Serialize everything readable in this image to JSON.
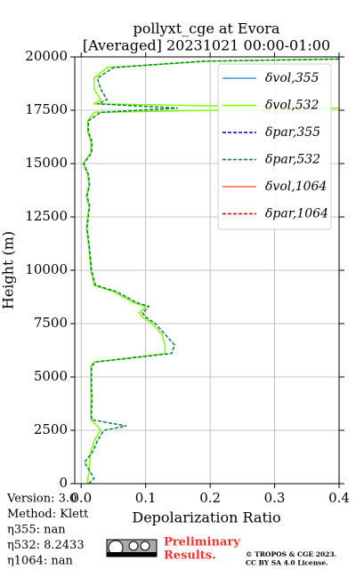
{
  "chart_data": {
    "type": "line",
    "title": "pollyxt_cge at Evora",
    "subtitle": "[Averaged] 20231021 00:00-01:00",
    "x_label": "Depolarization Ratio",
    "y_label": "Height (m)",
    "heights": [
      0,
      250,
      500,
      1000,
      1500,
      2000,
      2500,
      2700,
      3000,
      3500,
      4000,
      4500,
      5000,
      5500,
      5700,
      5900,
      6100,
      6500,
      7000,
      7500,
      7800,
      8000,
      8300,
      8500,
      9000,
      9300,
      10000,
      11000,
      12000,
      12500,
      13000,
      13500,
      14000,
      14500,
      15000,
      15500,
      16000,
      16500,
      17000,
      17400,
      17600,
      17800,
      18000,
      18500,
      19000,
      19500,
      19800,
      19900,
      20000
    ],
    "series": [
      {
        "name": "δvol,355",
        "color": "#3399dd",
        "dash": false,
        "values": [
          null,
          null,
          null,
          null,
          null,
          null,
          null,
          null,
          null,
          null,
          null,
          null,
          null,
          null,
          null,
          null,
          null,
          null,
          null,
          null,
          null,
          null,
          null,
          null,
          null,
          null,
          null,
          null,
          null,
          null,
          null,
          null,
          null,
          null,
          null,
          null,
          null,
          null,
          null,
          null,
          null,
          null,
          null,
          null,
          null,
          null,
          null,
          null,
          null
        ]
      },
      {
        "name": "δvol,532",
        "color": "#80ff00",
        "dash": false,
        "values": [
          0.01,
          0.01,
          0.012,
          0.013,
          0.015,
          0.02,
          0.03,
          0.025,
          0.015,
          0.015,
          0.015,
          0.015,
          0.015,
          0.015,
          0.02,
          0.08,
          0.13,
          0.13,
          0.125,
          0.11,
          0.095,
          0.09,
          0.1,
          0.08,
          0.05,
          0.02,
          0.015,
          0.012,
          0.008,
          0.01,
          0.012,
          0.008,
          0.012,
          0.01,
          0.003,
          0.015,
          0.015,
          0.01,
          0.01,
          0.02,
          0.4,
          0.02,
          0.03,
          0.02,
          0.02,
          0.04,
          0.2,
          0.4,
          0.4
        ]
      },
      {
        "name": "δpar,355",
        "color": "#0000cc",
        "dash": true,
        "values": [
          null,
          null,
          null,
          null,
          null,
          null,
          null,
          null,
          null,
          null,
          null,
          null,
          null,
          null,
          null,
          null,
          null,
          null,
          null,
          null,
          null,
          null,
          null,
          null,
          null,
          null,
          null,
          null,
          null,
          null,
          null,
          null,
          null,
          null,
          null,
          null,
          null,
          null,
          null,
          null,
          null,
          null,
          null,
          null,
          null,
          null,
          null,
          null,
          null
        ]
      },
      {
        "name": "δpar,532",
        "color": "#008040",
        "dash": true,
        "values": [
          0.012,
          0.02,
          0.015,
          0.005,
          0.018,
          0.025,
          0.035,
          0.07,
          0.016,
          0.016,
          0.017,
          0.016,
          0.016,
          0.016,
          0.022,
          0.08,
          0.14,
          0.145,
          0.13,
          0.115,
          0.1,
          0.095,
          0.105,
          0.085,
          0.055,
          0.022,
          0.016,
          0.013,
          0.009,
          0.011,
          0.013,
          0.009,
          0.013,
          0.011,
          0.004,
          0.016,
          0.017,
          0.011,
          0.011,
          0.03,
          0.15,
          0.025,
          0.04,
          0.03,
          0.025,
          0.05,
          0.19,
          0.4,
          0.4
        ]
      },
      {
        "name": "δvol,1064",
        "color": "#ff6040",
        "dash": false,
        "values": [
          null,
          null,
          null,
          null,
          null,
          null,
          null,
          null,
          null,
          null,
          null,
          null,
          null,
          null,
          null,
          null,
          null,
          null,
          null,
          null,
          null,
          null,
          null,
          null,
          null,
          null,
          null,
          null,
          null,
          null,
          null,
          null,
          null,
          null,
          null,
          null,
          null,
          null,
          null,
          null,
          null,
          null,
          null,
          null,
          null,
          null,
          null,
          null,
          null
        ]
      },
      {
        "name": "δpar,1064",
        "color": "#cc0000",
        "dash": true,
        "values": [
          null,
          null,
          null,
          null,
          null,
          null,
          null,
          null,
          null,
          null,
          null,
          null,
          null,
          null,
          null,
          null,
          null,
          null,
          null,
          null,
          null,
          null,
          null,
          null,
          null,
          null,
          null,
          null,
          null,
          null,
          null,
          null,
          null,
          null,
          null,
          null,
          null,
          null,
          null,
          null,
          null,
          null,
          null,
          null,
          null,
          null,
          null,
          null,
          null
        ]
      }
    ],
    "xlim": [
      -0.01,
      0.4
    ],
    "xticks": [
      {
        "value": 0,
        "label": "0.0"
      },
      0.1,
      0.2,
      0.3,
      0.4
    ],
    "ylim": [
      0,
      20000
    ],
    "yticks": [
      0,
      2500,
      5000,
      7500,
      10000,
      12500,
      15000,
      17500,
      20000
    ],
    "grid": true,
    "legend": "upper right",
    "info": [
      "Version: 3.0",
      "Method: Klett",
      "η355:    nan",
      "η532: 8.2433",
      "η1064:    nan"
    ],
    "badge": [
      "Preliminary",
      "Results."
    ],
    "copyright": [
      "© TROPOS & CGE 2023.",
      "CC BY SA 4.0 License."
    ]
  }
}
